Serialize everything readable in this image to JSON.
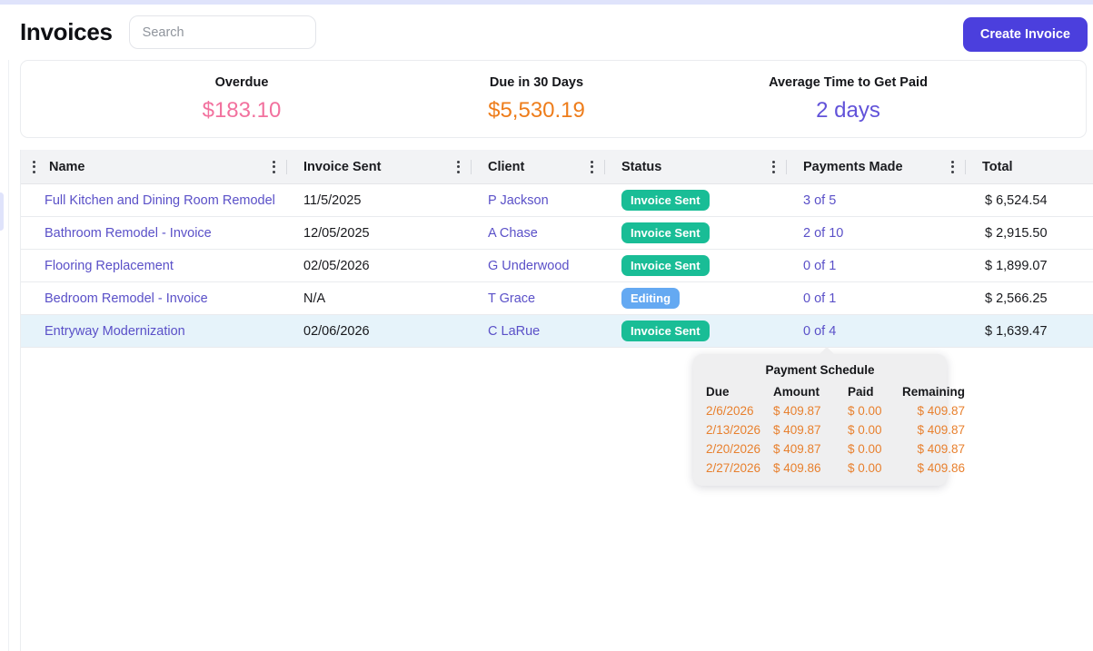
{
  "page_title": "Invoices",
  "search": {
    "placeholder": "Search"
  },
  "create_button_label": "Create Invoice",
  "stats": [
    {
      "label": "Overdue",
      "value": "$183.10",
      "color": "#f2719e"
    },
    {
      "label": "Due in 30 Days",
      "value": "$5,530.19",
      "color": "#ee7d1b"
    },
    {
      "label": "Average Time to Get Paid",
      "value": "2 days",
      "color": "#6152d9"
    }
  ],
  "table": {
    "columns": [
      "Name",
      "Invoice Sent",
      "Client",
      "Status",
      "Payments Made",
      "Total"
    ],
    "rows": [
      {
        "name": "Full Kitchen and Dining Room Remodel",
        "invoice_sent": "11/5/2025",
        "client": "P Jackson",
        "status": "Invoice Sent",
        "status_type": "sent",
        "payments_made": "3 of 5",
        "total": "$ 6,524.54",
        "highlighted": false
      },
      {
        "name": "Bathroom Remodel - Invoice",
        "invoice_sent": "12/05/2025",
        "client": "A Chase",
        "status": "Invoice Sent",
        "status_type": "sent",
        "payments_made": "2 of 10",
        "total": "$ 2,915.50",
        "highlighted": false
      },
      {
        "name": "Flooring Replacement",
        "invoice_sent": "02/05/2026",
        "client": "G Underwood",
        "status": "Invoice Sent",
        "status_type": "sent",
        "payments_made": "0 of 1",
        "total": "$ 1,899.07",
        "highlighted": false
      },
      {
        "name": "Bedroom Remodel - Invoice",
        "invoice_sent": "N/A",
        "client": "T Grace",
        "status": "Editing",
        "status_type": "editing",
        "payments_made": "0 of 1",
        "total": "$ 2,566.25",
        "highlighted": false
      },
      {
        "name": "Entryway Modernization",
        "invoice_sent": "02/06/2026",
        "client": "C LaRue",
        "status": "Invoice Sent",
        "status_type": "sent",
        "payments_made": "0 of 4",
        "total": "$ 1,639.47",
        "highlighted": true
      }
    ]
  },
  "payment_schedule_tooltip": {
    "title": "Payment Schedule",
    "columns": [
      "Due",
      "Amount",
      "Paid",
      "Remaining"
    ],
    "rows": [
      [
        "2/6/2026",
        "$ 409.87",
        "$ 0.00",
        "$ 409.87"
      ],
      [
        "2/13/2026",
        "$ 409.87",
        "$ 0.00",
        "$ 409.87"
      ],
      [
        "2/20/2026",
        "$ 409.87",
        "$ 0.00",
        "$ 409.87"
      ],
      [
        "2/27/2026",
        "$ 409.86",
        "$ 0.00",
        "$ 409.86"
      ]
    ]
  },
  "colors": {
    "topbar": "#dfe3fb",
    "accent": "#4b3fdd",
    "link": "#5a50c8",
    "badge_sent": "#19bd96",
    "badge_editing": "#64a9f2",
    "tooltip_orange": "#e8802e"
  }
}
